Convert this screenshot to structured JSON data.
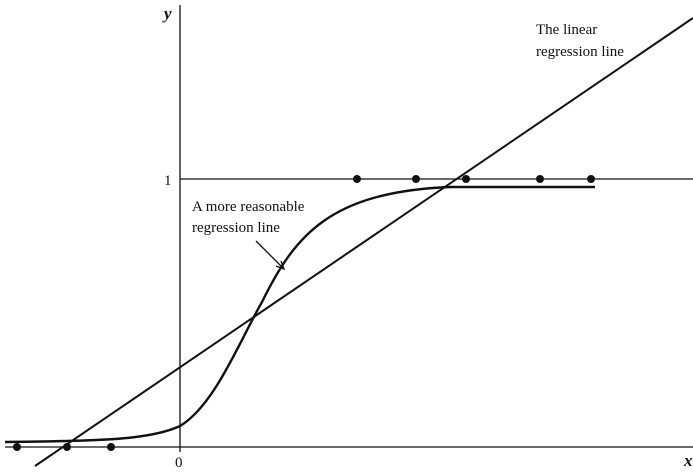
{
  "axes": {
    "y_label": "y",
    "x_label": "x",
    "origin_label": "0",
    "one_label": "1"
  },
  "annotations": {
    "linear": [
      "The linear",
      "regression line"
    ],
    "reasonable": [
      "A more reasonable",
      "regression line"
    ]
  }
}
